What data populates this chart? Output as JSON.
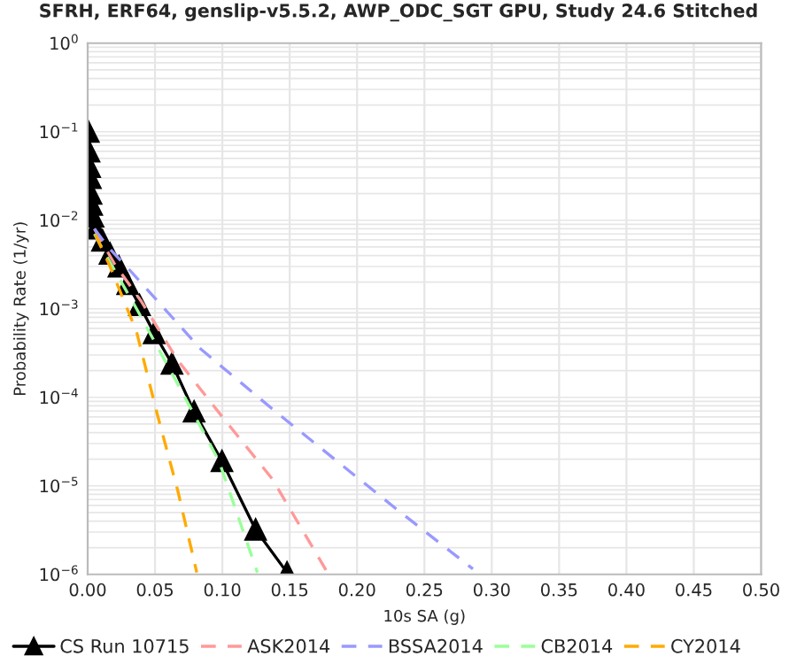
{
  "chart_data": {
    "type": "line",
    "title": "SFRH, ERF64, genslip-v5.5.2, AWP_ODC_SGT GPU, Study 24.6 Stitched",
    "xlabel": "10s SA (g)",
    "ylabel": "Probability Rate (1/yr)",
    "log": "y",
    "grid": true,
    "legend": "bottom",
    "xlim": [
      0,
      0.5
    ],
    "xticks": [
      {
        "value": 0,
        "label": "0.00"
      },
      {
        "value": 0.05,
        "label": "0.05"
      },
      {
        "value": 0.1,
        "label": "0.10"
      },
      {
        "value": 0.15,
        "label": "0.15"
      },
      {
        "value": 0.2,
        "label": "0.20"
      },
      {
        "value": 0.25,
        "label": "0.25"
      },
      {
        "value": 0.3,
        "label": "0.30"
      },
      {
        "value": 0.35,
        "label": "0.35"
      },
      {
        "value": 0.4,
        "label": "0.40"
      },
      {
        "value": 0.45,
        "label": "0.45"
      },
      {
        "value": 0.5,
        "label": "0.50"
      }
    ],
    "ylim": [
      1e-06,
      1
    ],
    "yticks": [
      {
        "value": 1e-06,
        "label": "10$^{−6}$"
      },
      {
        "value": 1e-05,
        "label": "10$^{−5}$"
      },
      {
        "value": 0.0001,
        "label": "10$^{−4}$"
      },
      {
        "value": 0.001,
        "label": "10$^{−3}$"
      },
      {
        "value": 0.01,
        "label": "10$^{−2}$"
      },
      {
        "value": 0.1,
        "label": "10$^{−1}$"
      },
      {
        "value": 1,
        "label": "10$^{0}$"
      }
    ],
    "series": [
      {
        "name": "CS Run 10715",
        "color": "#000000",
        "marker": "triangle",
        "line_style": "solid",
        "x": [
          0.0005,
          0.001,
          0.0015,
          0.002,
          0.0025,
          0.003,
          0.004,
          0.0057,
          0.011,
          0.0166,
          0.0232,
          0.0297,
          0.0385,
          0.0494,
          0.0626,
          0.079,
          0.0997,
          0.1247,
          0.148
        ],
        "values": [
          0.1,
          0.06,
          0.04,
          0.03,
          0.02,
          0.015,
          0.011,
          0.0081,
          0.0059,
          0.0042,
          0.003,
          0.0019,
          0.0011,
          0.00053,
          0.00024,
          6.9e-05,
          1.9e-05,
          3.2e-06,
          1.05e-06
        ]
      },
      {
        "name": "ASK2014",
        "color": "#ff9999",
        "marker": "none",
        "line_style": "dashed",
        "x": [
          0.005,
          0.02,
          0.04,
          0.067,
          0.1,
          0.137,
          0.178
        ],
        "values": [
          0.008,
          0.0032,
          0.0012,
          0.00026,
          6e-05,
          1.2e-05,
          1.05e-06
        ]
      },
      {
        "name": "BSSA2014",
        "color": "#9999ff",
        "marker": "none",
        "line_style": "dashed",
        "x": [
          0.005,
          0.015,
          0.0297,
          0.084,
          0.137,
          0.229,
          0.286
        ],
        "values": [
          0.008,
          0.005,
          0.0029,
          0.00035,
          7.4e-05,
          5.5e-06,
          1.15e-06
        ]
      },
      {
        "name": "CB2014",
        "color": "#99ff99",
        "marker": "none",
        "line_style": "dashed",
        "x": [
          0.005,
          0.0122,
          0.0363,
          0.067,
          0.0975,
          0.126
        ],
        "values": [
          0.007,
          0.0044,
          0.001,
          0.00014,
          1.9e-05,
          1.05e-06
        ]
      },
      {
        "name": "CY2014",
        "color": "#ffaa00",
        "marker": "none",
        "line_style": "dashed",
        "x": [
          0.0057,
          0.0166,
          0.0363,
          0.0516,
          0.067,
          0.081
        ],
        "values": [
          0.0069,
          0.003,
          0.00055,
          6.5e-05,
          8.7e-06,
          1.05e-06
        ]
      }
    ]
  }
}
